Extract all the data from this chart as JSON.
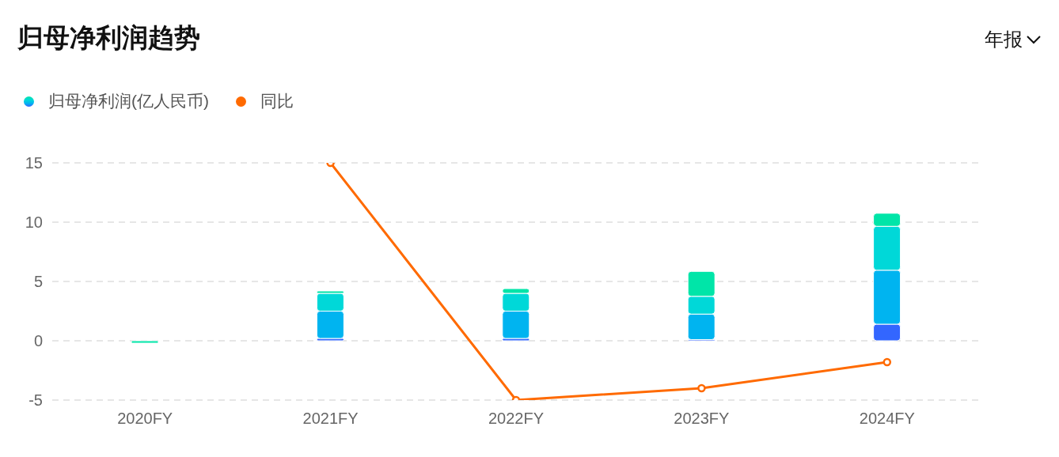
{
  "chart_data": {
    "type": "bar",
    "title": "归母净利润趋势",
    "annotations": [
      "年报"
    ],
    "categories": [
      "2020FY",
      "2021FY",
      "2022FY",
      "2023FY",
      "2024FY"
    ],
    "stacked": true,
    "series": [
      {
        "name": "归母净利润(亿人民币)",
        "color": "#3366ff",
        "values": [
          null,
          0.2,
          0.2,
          0.1,
          1.4
        ]
      },
      {
        "color": "#00b4f0",
        "values": [
          null,
          2.3,
          2.3,
          2.15,
          4.55
        ]
      },
      {
        "color": "#00d8d8",
        "values": [
          null,
          1.5,
          1.5,
          1.5,
          3.7
        ]
      },
      {
        "color": "#00e5a8",
        "values": [
          -0.2,
          0.2,
          0.4,
          2.1,
          1.1
        ]
      },
      {
        "name": "同比",
        "type": "line",
        "color": "#ff6a00",
        "values": [
          null,
          15,
          -5,
          -4,
          -1.8
        ]
      }
    ],
    "ylim": [
      -5,
      15
    ],
    "yticks": [
      -5,
      0,
      5,
      10,
      15
    ],
    "grid": "y",
    "legend": "top left",
    "marker": "circle",
    "line_style": "solid"
  }
}
